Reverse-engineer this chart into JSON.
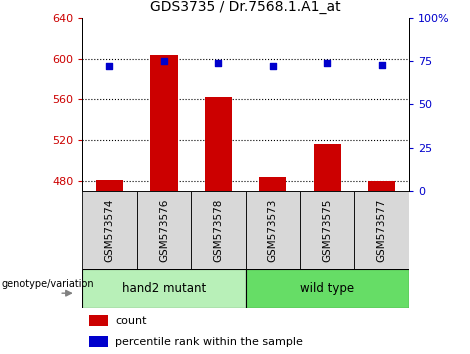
{
  "title": "GDS3735 / Dr.7568.1.A1_at",
  "samples": [
    "GSM573574",
    "GSM573576",
    "GSM573578",
    "GSM573573",
    "GSM573575",
    "GSM573577"
  ],
  "counts": [
    481,
    603,
    562,
    484,
    516,
    480
  ],
  "percentiles": [
    72,
    75,
    74,
    72,
    74,
    73
  ],
  "ylim_left": [
    470,
    640
  ],
  "ylim_right": [
    0,
    100
  ],
  "yticks_left": [
    480,
    520,
    560,
    600,
    640
  ],
  "yticks_right": [
    0,
    25,
    50,
    75,
    100
  ],
  "bar_color": "#cc0000",
  "dot_color": "#0000cc",
  "tick_label_color_left": "#cc0000",
  "tick_label_color_right": "#0000cc",
  "legend_count_label": "count",
  "legend_pct_label": "percentile rank within the sample",
  "genotype_label": "genotype/variation",
  "bar_width": 0.5,
  "group_mutant_color": "#b8f0b8",
  "group_wild_color": "#66dd66",
  "sample_box_color": "#d8d8d8"
}
